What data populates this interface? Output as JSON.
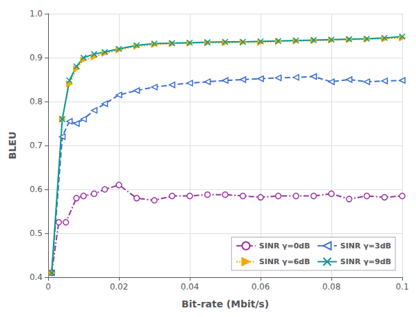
{
  "chart_data": {
    "type": "line",
    "xlabel": "Bit-rate (Mbit/s)",
    "ylabel": "BLEU",
    "xlim": [
      0,
      0.1
    ],
    "ylim": [
      0.4,
      1.0
    ],
    "xticks": [
      0,
      0.02,
      0.04,
      0.06,
      0.08,
      0.1
    ],
    "yticks": [
      0.4,
      0.5,
      0.6,
      0.7,
      0.8,
      0.9,
      {
        "value": 1.0,
        "label": "1.0"
      }
    ],
    "grid": true,
    "legend": "lower right",
    "series": [
      {
        "name": "SINR γ=0dB",
        "color": "#9b30a0",
        "marker": "circle",
        "line_style": "dashdot",
        "x": [
          0.001,
          0.003,
          0.005,
          0.008,
          0.01,
          0.013,
          0.016,
          0.02,
          0.025,
          0.03,
          0.035,
          0.04,
          0.045,
          0.05,
          0.055,
          0.06,
          0.065,
          0.07,
          0.075,
          0.08,
          0.085,
          0.09,
          0.095,
          0.1
        ],
        "values": [
          0.41,
          0.525,
          0.525,
          0.58,
          0.585,
          0.59,
          0.6,
          0.61,
          0.58,
          0.575,
          0.585,
          0.585,
          0.588,
          0.588,
          0.585,
          0.582,
          0.585,
          0.585,
          0.585,
          0.59,
          0.578,
          0.585,
          0.582,
          0.585
        ]
      },
      {
        "name": "SINR γ=3dB",
        "color": "#3b6ed4",
        "marker": "triangle-left",
        "line_style": "dashed",
        "x": [
          0.001,
          0.004,
          0.006,
          0.008,
          0.01,
          0.013,
          0.016,
          0.02,
          0.025,
          0.03,
          0.035,
          0.04,
          0.045,
          0.05,
          0.055,
          0.06,
          0.065,
          0.07,
          0.075,
          0.08,
          0.085,
          0.09,
          0.095,
          0.1
        ],
        "values": [
          0.41,
          0.72,
          0.755,
          0.75,
          0.76,
          0.78,
          0.795,
          0.815,
          0.825,
          0.833,
          0.838,
          0.842,
          0.845,
          0.848,
          0.85,
          0.852,
          0.854,
          0.855,
          0.857,
          0.845,
          0.85,
          0.845,
          0.847,
          0.848
        ]
      },
      {
        "name": "SINR γ=6dB",
        "color": "#f5a800",
        "marker": "triangle-right",
        "line_style": "dotted",
        "x": [
          0.001,
          0.004,
          0.006,
          0.008,
          0.01,
          0.013,
          0.016,
          0.02,
          0.025,
          0.03,
          0.035,
          0.04,
          0.045,
          0.05,
          0.055,
          0.06,
          0.065,
          0.07,
          0.075,
          0.08,
          0.085,
          0.09,
          0.095,
          0.1
        ],
        "values": [
          0.41,
          0.76,
          0.84,
          0.875,
          0.895,
          0.902,
          0.91,
          0.918,
          0.926,
          0.93,
          0.932,
          0.933,
          0.934,
          0.934,
          0.935,
          0.935,
          0.937,
          0.938,
          0.939,
          0.94,
          0.941,
          0.942,
          0.943,
          0.945
        ]
      },
      {
        "name": "SINR γ=9dB",
        "color": "#009999",
        "marker": "x",
        "line_style": "solid",
        "x": [
          0.001,
          0.004,
          0.006,
          0.008,
          0.01,
          0.013,
          0.016,
          0.02,
          0.025,
          0.03,
          0.035,
          0.04,
          0.045,
          0.05,
          0.055,
          0.06,
          0.065,
          0.07,
          0.075,
          0.08,
          0.085,
          0.09,
          0.095,
          0.1
        ],
        "values": [
          0.41,
          0.76,
          0.848,
          0.88,
          0.9,
          0.908,
          0.913,
          0.92,
          0.928,
          0.932,
          0.933,
          0.934,
          0.935,
          0.936,
          0.936,
          0.937,
          0.938,
          0.939,
          0.94,
          0.941,
          0.942,
          0.943,
          0.945,
          0.948
        ]
      }
    ]
  }
}
